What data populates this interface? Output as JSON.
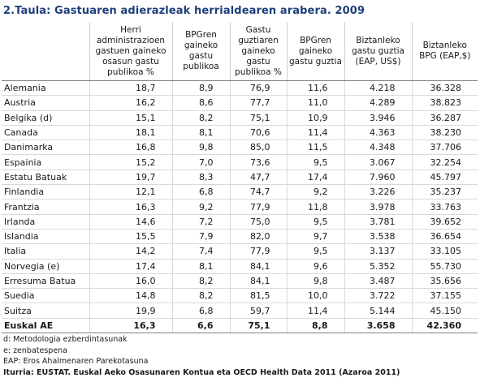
{
  "title": "2.Taula: Gastuaren adierazleak herrialdearen arabera. 2009",
  "headers": [
    "",
    "Herri administrazioen gastuen gaineko osasun gastu publikoa %",
    "BPGren gaineko gastu publikoa",
    "Gastu guztiaren gaineko gastu publikoa %",
    "BPGren gaineko gastu guztia",
    "Biztanleko gastu guztia (EAP, US$)",
    "Biztanleko BPG (EAP,$)"
  ],
  "rows": [
    [
      "Alemania",
      "18,7",
      "8,9",
      "76,9",
      "11,6",
      "4.218",
      "36.328"
    ],
    [
      "Austria",
      "16,2",
      "8,6",
      "77,7",
      "11,0",
      "4.289",
      "38.823"
    ],
    [
      "Belgika (d)",
      "15,1",
      "8,2",
      "75,1",
      "10,9",
      "3.946",
      "36.287"
    ],
    [
      "Canada",
      "18,1",
      "8,1",
      "70,6",
      "11,4",
      "4.363",
      "38.230"
    ],
    [
      "Danimarka",
      "16,8",
      "9,8",
      "85,0",
      "11,5",
      "4.348",
      "37.706"
    ],
    [
      "Espainia",
      "15,2",
      "7,0",
      "73,6",
      "9,5",
      "3.067",
      "32.254"
    ],
    [
      "Estatu Batuak",
      "19,7",
      "8,3",
      "47,7",
      "17,4",
      "7.960",
      "45.797"
    ],
    [
      "Finlandia",
      "12,1",
      "6,8",
      "74,7",
      "9,2",
      "3.226",
      "35.237"
    ],
    [
      "Frantzia",
      "16,3",
      "9,2",
      "77,9",
      "11,8",
      "3.978",
      "33.763"
    ],
    [
      "Irlanda",
      "14,6",
      "7,2",
      "75,0",
      "9,5",
      "3.781",
      "39.652"
    ],
    [
      "Islandia",
      "15,5",
      "7,9",
      "82,0",
      "9,7",
      "3.538",
      "36.654"
    ],
    [
      "Italia",
      "14,2",
      "7,4",
      "77,9",
      "9,5",
      "3.137",
      "33.105"
    ],
    [
      "Norvegia (e)",
      "17,4",
      "8,1",
      "84,1",
      "9,6",
      "5.352",
      "55.730"
    ],
    [
      "Erresuma Batua",
      "16,0",
      "8,2",
      "84,1",
      "9,8",
      "3.487",
      "35.656"
    ],
    [
      "Suedia",
      "14,8",
      "8,2",
      "81,5",
      "10,0",
      "3.722",
      "37.155"
    ],
    [
      "Suitza",
      "19,9",
      "6,8",
      "59,7",
      "11,4",
      "5.144",
      "45.150"
    ]
  ],
  "total": [
    "Euskal AE",
    "16,3",
    "6,6",
    "75,1",
    "8,8",
    "3.658",
    "42.360"
  ],
  "notes": [
    "d: Metodologia ezberdintasunak",
    "e: zenbatespena",
    "EAP: Eros Ahalmenaren Parekotasuna"
  ],
  "source": "Iturria: EUSTAT. Euskal Aeko Osasunaren Kontua eta OECD Health Data 2011 (Azaroa 2011)",
  "colors": {
    "title": "#1f3f7a",
    "text": "#1a1a1a",
    "rule": "#808080"
  }
}
